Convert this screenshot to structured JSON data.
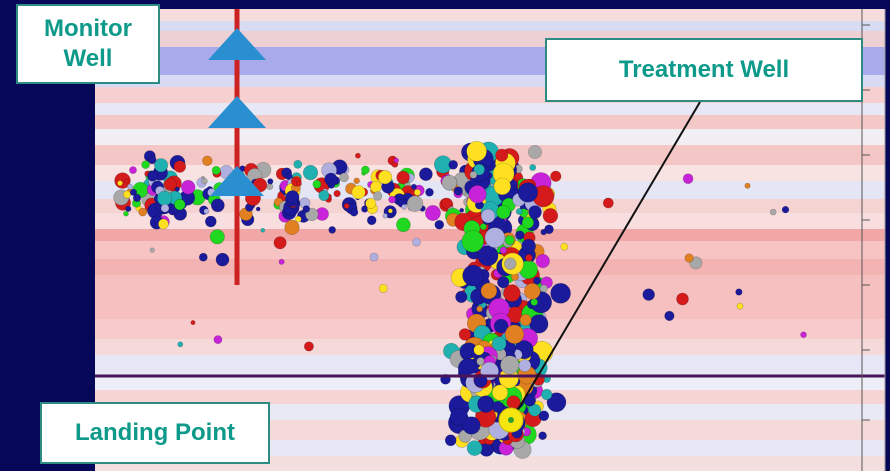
{
  "labels": {
    "monitor_well": "Monitor\nWell",
    "treatment_well": "Treatment Well",
    "landing_point": "Landing Point"
  },
  "colors": {
    "frame": "#07075a",
    "monitor_well": "#cc2222",
    "triangle": "#2a8fd0",
    "landing_line": "#4b1458",
    "callout_text": "#0e9a8a",
    "callout_border": "#2e8b84",
    "landing_point": "#f5e60f"
  },
  "event_colors": [
    "#1a1a9a",
    "#1a1a9a",
    "#1a1a9a",
    "#1a1a9a",
    "#d41a1a",
    "#d41a1a",
    "#1fd81f",
    "#c823d8",
    "#a8a8a8",
    "#b0b0e0",
    "#20b0b0",
    "#ffe020",
    "#e08020"
  ]
}
